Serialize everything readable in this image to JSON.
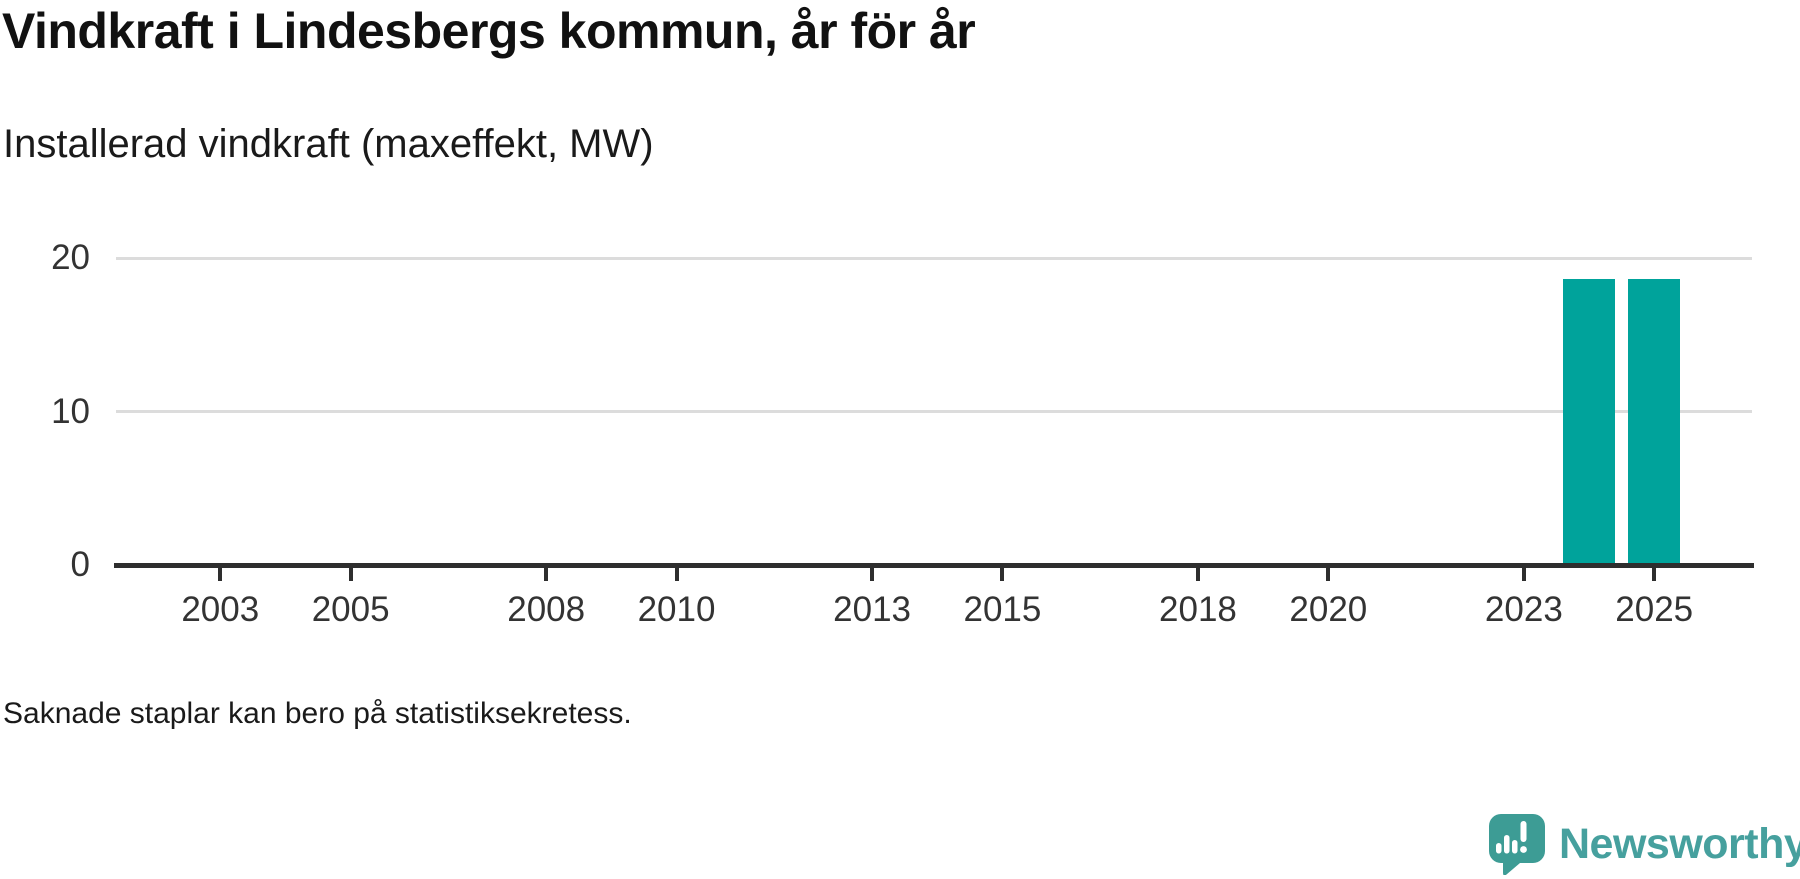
{
  "brand": {
    "name": "Newsworthy",
    "icon_color": "#3d9c95",
    "wordmark_color": "#46a09e"
  },
  "chart_data": {
    "type": "bar",
    "title": "Vindkraft i Lindesbergs kommun, år för år",
    "subtitle": "Installerad vindkraft (maxeffekt, MW)",
    "footnote": "Saknade staplar kan bero på statistiksekretess.",
    "xlabel": "",
    "ylabel": "",
    "categories": [
      2002,
      2003,
      2004,
      2005,
      2006,
      2007,
      2008,
      2009,
      2010,
      2011,
      2012,
      2013,
      2014,
      2015,
      2016,
      2017,
      2018,
      2019,
      2020,
      2021,
      2022,
      2023,
      2024,
      2025
    ],
    "values": [
      null,
      null,
      null,
      null,
      null,
      null,
      null,
      null,
      null,
      null,
      null,
      null,
      null,
      null,
      null,
      null,
      null,
      null,
      null,
      null,
      null,
      null,
      18.6,
      18.6
    ],
    "bar_color": "#00a39b",
    "xtick_labels": [
      "2003",
      "2005",
      "2008",
      "2010",
      "2013",
      "2015",
      "2018",
      "2020",
      "2023",
      "2025"
    ],
    "yticks": [
      0,
      10,
      20
    ],
    "ylim": [
      0,
      20
    ],
    "xlim": [
      2001.4,
      2026.5
    ],
    "grid": "horizontal-only",
    "legend": "none"
  }
}
